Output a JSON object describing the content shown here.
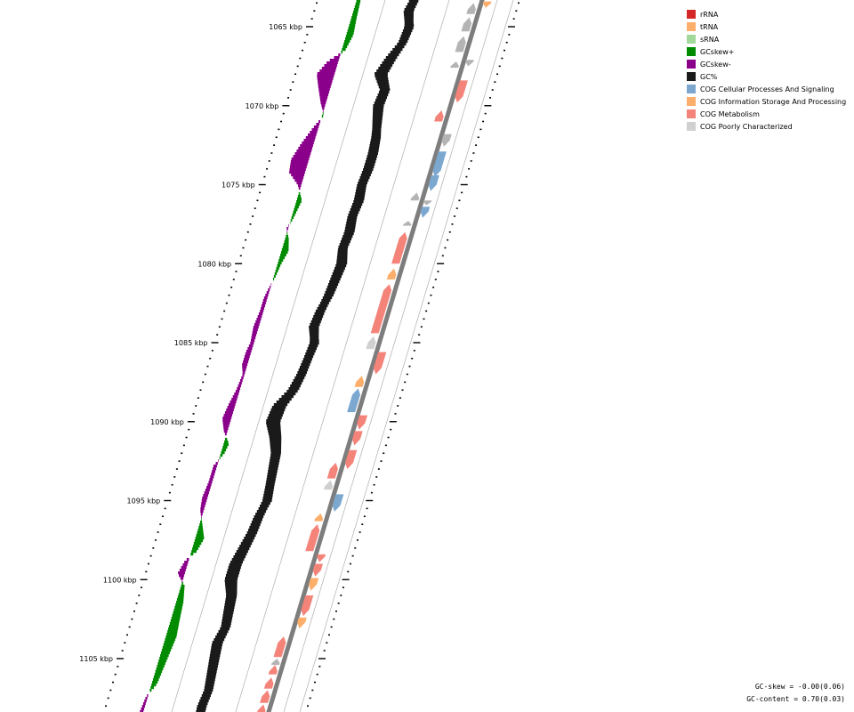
{
  "position_labels": [
    {
      "kbp": 1065,
      "label": "1065 kbp"
    },
    {
      "kbp": 1070,
      "label": "1070 kbp"
    },
    {
      "kbp": 1075,
      "label": "1075 kbp"
    },
    {
      "kbp": 1080,
      "label": "1080 kbp"
    },
    {
      "kbp": 1085,
      "label": "1085 kbp"
    },
    {
      "kbp": 1090,
      "label": "1090 kbp"
    },
    {
      "kbp": 1095,
      "label": "1095 kbp"
    },
    {
      "kbp": 1100,
      "label": "1100 kbp"
    },
    {
      "kbp": 1105,
      "label": "1105 kbp"
    }
  ],
  "legend": [
    {
      "label": "rRNA",
      "color": "#d62728"
    },
    {
      "label": "tRNA",
      "color": "#fdae6b"
    },
    {
      "label": "sRNA",
      "color": "#a1d99b"
    },
    {
      "label": "GCskew+",
      "color": "#008b00"
    },
    {
      "label": "GCskew-",
      "color": "#8b008b"
    },
    {
      "label": "GC%",
      "color": "#1a1a1a"
    },
    {
      "label": "COG Cellular Processes And Signaling",
      "color": "#7ca8d0"
    },
    {
      "label": "COG Information Storage And Processing",
      "color": "#fdae6b"
    },
    {
      "label": "COG Metabolism",
      "color": "#f4837a"
    },
    {
      "label": "COG Poorly Characterized",
      "color": "#d0d0d0"
    }
  ],
  "stats": {
    "gc_skew": "GC-skew = -0.00(0.06)",
    "gc_content": "GC-content = 0.70(0.03)"
  },
  "colors": {
    "skew_pos": "#008b00",
    "skew_neg": "#8b008b",
    "gc": "#1a1a1a",
    "cellular": "#7ca8d0",
    "info": "#fdae6b",
    "metab": "#f4837a",
    "poor": "#d0d0d0",
    "unknown": "#b4b4b4",
    "backbone": "#7d7d7d"
  },
  "genes": [
    {
      "s": 1063.5,
      "e": 1064.2,
      "strand": 1,
      "cat": "unknown"
    },
    {
      "s": 1064.4,
      "e": 1065.3,
      "strand": 1,
      "cat": "unknown"
    },
    {
      "s": 1065.6,
      "e": 1066.6,
      "strand": 1,
      "cat": "unknown"
    },
    {
      "s": 1067.2,
      "e": 1067.6,
      "strand": 1,
      "cat": "unknown"
    },
    {
      "s": 1067.1,
      "e": 1067.5,
      "strand": -1,
      "cat": "unknown"
    },
    {
      "s": 1068.4,
      "e": 1069.8,
      "strand": -1,
      "cat": "metab"
    },
    {
      "s": 1070.3,
      "e": 1071.0,
      "strand": 1,
      "cat": "metab"
    },
    {
      "s": 1071.8,
      "e": 1072.6,
      "strand": -1,
      "cat": "unknown"
    },
    {
      "s": 1072.9,
      "e": 1074.5,
      "strand": -1,
      "cat": "cellular"
    },
    {
      "s": 1074.4,
      "e": 1075.4,
      "strand": -1,
      "cat": "cellular"
    },
    {
      "s": 1075.5,
      "e": 1076.0,
      "strand": 1,
      "cat": "unknown"
    },
    {
      "s": 1076.0,
      "e": 1076.3,
      "strand": -1,
      "cat": "unknown"
    },
    {
      "s": 1076.4,
      "e": 1077.1,
      "strand": -1,
      "cat": "cellular"
    },
    {
      "s": 1077.3,
      "e": 1077.6,
      "strand": 1,
      "cat": "unknown"
    },
    {
      "s": 1078.0,
      "e": 1080.0,
      "strand": 1,
      "cat": "metab"
    },
    {
      "s": 1080.3,
      "e": 1081.0,
      "strand": 1,
      "cat": "info"
    },
    {
      "s": 1081.3,
      "e": 1084.4,
      "strand": 1,
      "cat": "metab"
    },
    {
      "s": 1084.6,
      "e": 1085.4,
      "strand": 1,
      "cat": "poor"
    },
    {
      "s": 1085.6,
      "e": 1087.0,
      "strand": -1,
      "cat": "metab"
    },
    {
      "s": 1087.1,
      "e": 1087.8,
      "strand": 1,
      "cat": "info"
    },
    {
      "s": 1087.9,
      "e": 1089.4,
      "strand": 1,
      "cat": "cellular"
    },
    {
      "s": 1089.6,
      "e": 1090.5,
      "strand": -1,
      "cat": "metab"
    },
    {
      "s": 1090.6,
      "e": 1091.5,
      "strand": -1,
      "cat": "metab"
    },
    {
      "s": 1091.8,
      "e": 1093.0,
      "strand": -1,
      "cat": "metab"
    },
    {
      "s": 1092.6,
      "e": 1093.6,
      "strand": 1,
      "cat": "metab"
    },
    {
      "s": 1093.7,
      "e": 1094.3,
      "strand": 1,
      "cat": "poor"
    },
    {
      "s": 1094.6,
      "e": 1095.7,
      "strand": -1,
      "cat": "cellular"
    },
    {
      "s": 1095.8,
      "e": 1096.3,
      "strand": 1,
      "cat": "info"
    },
    {
      "s": 1096.5,
      "e": 1098.2,
      "strand": 1,
      "cat": "metab"
    },
    {
      "s": 1098.4,
      "e": 1098.9,
      "strand": -1,
      "cat": "metab"
    },
    {
      "s": 1099.0,
      "e": 1099.8,
      "strand": -1,
      "cat": "metab"
    },
    {
      "s": 1099.9,
      "e": 1100.7,
      "strand": -1,
      "cat": "info"
    },
    {
      "s": 1101.0,
      "e": 1102.3,
      "strand": -1,
      "cat": "metab"
    },
    {
      "s": 1102.4,
      "e": 1103.1,
      "strand": -1,
      "cat": "info"
    },
    {
      "s": 1103.6,
      "e": 1104.9,
      "strand": 1,
      "cat": "metab"
    },
    {
      "s": 1105.0,
      "e": 1105.4,
      "strand": 1,
      "cat": "unknown"
    },
    {
      "s": 1105.4,
      "e": 1106.0,
      "strand": 1,
      "cat": "metab"
    },
    {
      "s": 1106.2,
      "e": 1106.9,
      "strand": 1,
      "cat": "metab"
    },
    {
      "s": 1107.0,
      "e": 1107.8,
      "strand": 1,
      "cat": "metab"
    },
    {
      "s": 1107.9,
      "e": 1108.6,
      "strand": 1,
      "cat": "metab"
    },
    {
      "s": 1108.7,
      "e": 1109.2,
      "strand": 1,
      "cat": "metab"
    },
    {
      "s": 1063.4,
      "e": 1063.8,
      "strand": -1,
      "cat": "info"
    }
  ]
}
